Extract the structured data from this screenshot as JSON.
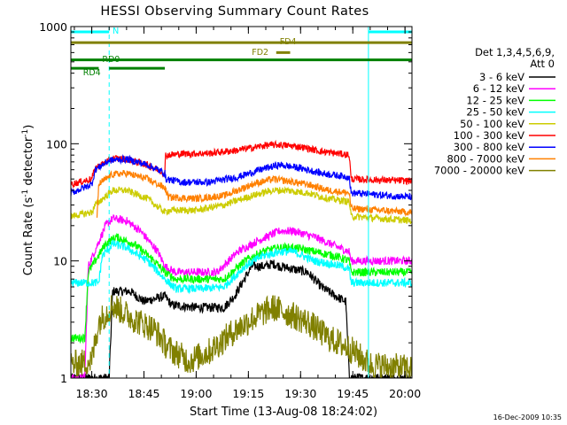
{
  "chart_data": {
    "type": "line",
    "title": "HESSI Observing Summary Count Rates",
    "xlabel": "Start Time (13-Aug-08 18:24:02)",
    "ylabel_main": "Count Rate (s",
    "ylabel_sup1": "-1",
    "ylabel_mid": " detector",
    "ylabel_sup2": "-1",
    "ylabel_end": ")",
    "timestamp": "16-Dec-2009 10:35",
    "x_unit": "minutes after 18:24:02",
    "xlim": [
      0,
      98
    ],
    "ylim": [
      1,
      1000
    ],
    "yscale": "log",
    "x_ticks": [
      {
        "label": "18:30",
        "value": 6
      },
      {
        "label": "18:45",
        "value": 21
      },
      {
        "label": "19:00",
        "value": 36
      },
      {
        "label": "19:15",
        "value": 51
      },
      {
        "label": "19:30",
        "value": 66
      },
      {
        "label": "19:45",
        "value": 81
      },
      {
        "label": "20:00",
        "value": 96
      }
    ],
    "y_ticks": [
      {
        "label": "1",
        "value": 1
      },
      {
        "label": "10",
        "value": 10
      },
      {
        "label": "100",
        "value": 100
      },
      {
        "label": "1000",
        "value": 1000
      }
    ],
    "legend_header": [
      "Det 1,3,4,5,6,9,",
      "Att 0"
    ],
    "legend_position": "right",
    "vlines": [
      {
        "x": 0,
        "color": "#00ffff",
        "style": "solid"
      },
      {
        "x": 11,
        "color": "#00ffff",
        "style": "dashed"
      },
      {
        "x": 85.5,
        "color": "#00ffff",
        "style": "solid"
      },
      {
        "x": 98,
        "color": "#00ffff",
        "style": "dashed"
      }
    ],
    "flags": [
      {
        "label": "N",
        "color": "#00ffff",
        "segments": [
          [
            0,
            11
          ],
          [
            85.5,
            98
          ]
        ],
        "y": 900,
        "label_x": 12,
        "label_y": 935
      },
      {
        "label": "FD4",
        "color": "#808000",
        "segments": [
          [
            0,
            98
          ]
        ],
        "y": 730,
        "label_x": 60,
        "label_y": 760
      },
      {
        "label": "FD2",
        "color": "#808000",
        "segments": [
          [
            59,
            63
          ]
        ],
        "y": 600,
        "label_x": 52,
        "label_y": 615
      },
      {
        "label": "RD0",
        "color": "#008000",
        "segments": [
          [
            0,
            98
          ]
        ],
        "y": 520,
        "label_x": 9,
        "label_y": 535
      },
      {
        "label": "RD4",
        "color": "#008000",
        "segments": [
          [
            0,
            8
          ],
          [
            11,
            27
          ]
        ],
        "y": 440,
        "label_x": 3.5,
        "label_y": 410
      }
    ],
    "series": [
      {
        "name": "3 - 6 keV",
        "color": "#000000",
        "noise": 0.04,
        "points": [
          [
            0,
            1
          ],
          [
            11,
            1
          ],
          [
            12,
            5.5
          ],
          [
            17,
            5.5
          ],
          [
            21,
            4.5
          ],
          [
            27,
            5
          ],
          [
            29,
            4.2
          ],
          [
            36,
            4
          ],
          [
            44,
            4
          ],
          [
            47,
            5
          ],
          [
            52,
            9
          ],
          [
            56,
            9
          ],
          [
            58,
            9.5
          ],
          [
            60,
            9
          ],
          [
            64,
            8.5
          ],
          [
            68,
            8
          ],
          [
            72,
            6
          ],
          [
            76,
            5
          ],
          [
            79,
            4.5
          ],
          [
            80,
            1
          ],
          [
            98,
            1
          ]
        ]
      },
      {
        "name": "6 - 12 keV",
        "color": "#ff00ff",
        "noise": 0.035,
        "points": [
          [
            0,
            1
          ],
          [
            4,
            1
          ],
          [
            5,
            9
          ],
          [
            10,
            20
          ],
          [
            12,
            23
          ],
          [
            16,
            22
          ],
          [
            20,
            18
          ],
          [
            25,
            12
          ],
          [
            27,
            9
          ],
          [
            30,
            8
          ],
          [
            36,
            8
          ],
          [
            42,
            8
          ],
          [
            48,
            12
          ],
          [
            54,
            15
          ],
          [
            60,
            18
          ],
          [
            64,
            18
          ],
          [
            70,
            16
          ],
          [
            77,
            13
          ],
          [
            80,
            12
          ],
          [
            80.5,
            10
          ],
          [
            98,
            10
          ]
        ]
      },
      {
        "name": "12 - 25 keV",
        "color": "#00ff00",
        "noise": 0.035,
        "points": [
          [
            0,
            2.2
          ],
          [
            4,
            2.2
          ],
          [
            5,
            8
          ],
          [
            10,
            14
          ],
          [
            13,
            16
          ],
          [
            18,
            14
          ],
          [
            24,
            10
          ],
          [
            27,
            8
          ],
          [
            30,
            7
          ],
          [
            38,
            7
          ],
          [
            44,
            7
          ],
          [
            50,
            10
          ],
          [
            55,
            12
          ],
          [
            60,
            13
          ],
          [
            64,
            13
          ],
          [
            70,
            12
          ],
          [
            76,
            11
          ],
          [
            80,
            10
          ],
          [
            80.5,
            8
          ],
          [
            98,
            8
          ]
        ]
      },
      {
        "name": "25 - 50 keV",
        "color": "#00ffff",
        "noise": 0.035,
        "points": [
          [
            0,
            6.5
          ],
          [
            8,
            6.5
          ],
          [
            9,
            11
          ],
          [
            12,
            14
          ],
          [
            16,
            13
          ],
          [
            22,
            10
          ],
          [
            27,
            7
          ],
          [
            30,
            5.8
          ],
          [
            38,
            5.8
          ],
          [
            44,
            6
          ],
          [
            50,
            9
          ],
          [
            55,
            11
          ],
          [
            60,
            12
          ],
          [
            64,
            12
          ],
          [
            70,
            10
          ],
          [
            78,
            9
          ],
          [
            80,
            8.5
          ],
          [
            80.5,
            6.5
          ],
          [
            98,
            6.5
          ]
        ]
      },
      {
        "name": "50 - 100 keV",
        "color": "#cccc00",
        "noise": 0.03,
        "points": [
          [
            0,
            24
          ],
          [
            6,
            26
          ],
          [
            7,
            30
          ],
          [
            12,
            40
          ],
          [
            16,
            40
          ],
          [
            22,
            34
          ],
          [
            27,
            26
          ],
          [
            28,
            27
          ],
          [
            36,
            27
          ],
          [
            44,
            30
          ],
          [
            52,
            36
          ],
          [
            58,
            40
          ],
          [
            62,
            40
          ],
          [
            68,
            38
          ],
          [
            74,
            34
          ],
          [
            80,
            32
          ],
          [
            80.5,
            24
          ],
          [
            98,
            22
          ]
        ]
      },
      {
        "name": "100 - 300 keV",
        "color": "#ff0000",
        "noise": 0.03,
        "points": [
          [
            0,
            45
          ],
          [
            6,
            50
          ],
          [
            7,
            62
          ],
          [
            12,
            75
          ],
          [
            16,
            74
          ],
          [
            22,
            66
          ],
          [
            27,
            56
          ],
          [
            27.2,
            80
          ],
          [
            32,
            82
          ],
          [
            40,
            83
          ],
          [
            48,
            88
          ],
          [
            56,
            97
          ],
          [
            60,
            98
          ],
          [
            66,
            94
          ],
          [
            72,
            86
          ],
          [
            80,
            80
          ],
          [
            80.5,
            50
          ],
          [
            98,
            48
          ]
        ]
      },
      {
        "name": "300 - 800 keV",
        "color": "#0000ff",
        "noise": 0.03,
        "points": [
          [
            0,
            38
          ],
          [
            6,
            45
          ],
          [
            7,
            60
          ],
          [
            11,
            72
          ],
          [
            16,
            74
          ],
          [
            22,
            66
          ],
          [
            27,
            56
          ],
          [
            27.2,
            50
          ],
          [
            32,
            47
          ],
          [
            40,
            47
          ],
          [
            48,
            52
          ],
          [
            56,
            62
          ],
          [
            60,
            66
          ],
          [
            66,
            62
          ],
          [
            72,
            56
          ],
          [
            80,
            52
          ],
          [
            80.5,
            38
          ],
          [
            98,
            35
          ]
        ]
      },
      {
        "name": "800 - 7000 keV",
        "color": "#ff8000",
        "noise": 0.03,
        "points": [
          [
            7.5,
            22
          ],
          [
            8,
            45
          ],
          [
            12,
            55
          ],
          [
            16,
            56
          ],
          [
            22,
            50
          ],
          [
            27,
            42
          ],
          [
            28,
            35
          ],
          [
            36,
            34
          ],
          [
            44,
            36
          ],
          [
            52,
            45
          ],
          [
            58,
            50
          ],
          [
            62,
            48
          ],
          [
            68,
            45
          ],
          [
            74,
            40
          ],
          [
            80,
            38
          ],
          [
            80.5,
            28
          ],
          [
            98,
            26
          ]
        ]
      },
      {
        "name": "7000 - 20000 keV",
        "color": "#808000",
        "noise": 0.12,
        "points": [
          [
            0,
            1.3
          ],
          [
            6,
            1.4
          ],
          [
            8,
            3
          ],
          [
            12,
            4.2
          ],
          [
            18,
            3.2
          ],
          [
            24,
            2.6
          ],
          [
            28,
            1.8
          ],
          [
            34,
            1.4
          ],
          [
            40,
            1.7
          ],
          [
            46,
            2.4
          ],
          [
            52,
            3.2
          ],
          [
            58,
            4
          ],
          [
            62,
            3.6
          ],
          [
            68,
            3
          ],
          [
            74,
            2.2
          ],
          [
            80,
            1.8
          ],
          [
            86,
            1.3
          ],
          [
            98,
            1.2
          ]
        ]
      }
    ]
  }
}
